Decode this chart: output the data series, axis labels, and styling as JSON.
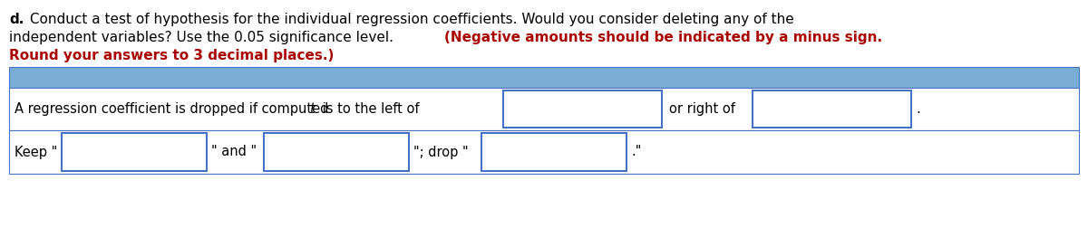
{
  "bg_color": "#ffffff",
  "table_header_bg": "#7bacd4",
  "input_box_border": "#4472c4",
  "line1_bold": "d.",
  "line1_normal": " Conduct a test of hypothesis for the individual regression coefficients. Would you consider deleting any of the",
  "line2_normal": "independent variables? Use the 0.05 significance level. ",
  "line2_red": "(Negative amounts should be indicated by a minus sign.",
  "line3_red": "Round your answers to 3 decimal places.)",
  "row1_text1": "A regression coefficient is dropped if computed ",
  "row1_italic": "t",
  "row1_text2": " is to the left of",
  "row1_text3": "or right of",
  "row1_period": ".",
  "row2_keep": "Keep \"",
  "row2_and": "\" and \"",
  "row2_drop": "\"; drop \"",
  "row2_end": ".\"",
  "fontsize_title": 11.0,
  "fontsize_table": 10.5,
  "title_color": "#000000",
  "red_color": "#aa0000"
}
